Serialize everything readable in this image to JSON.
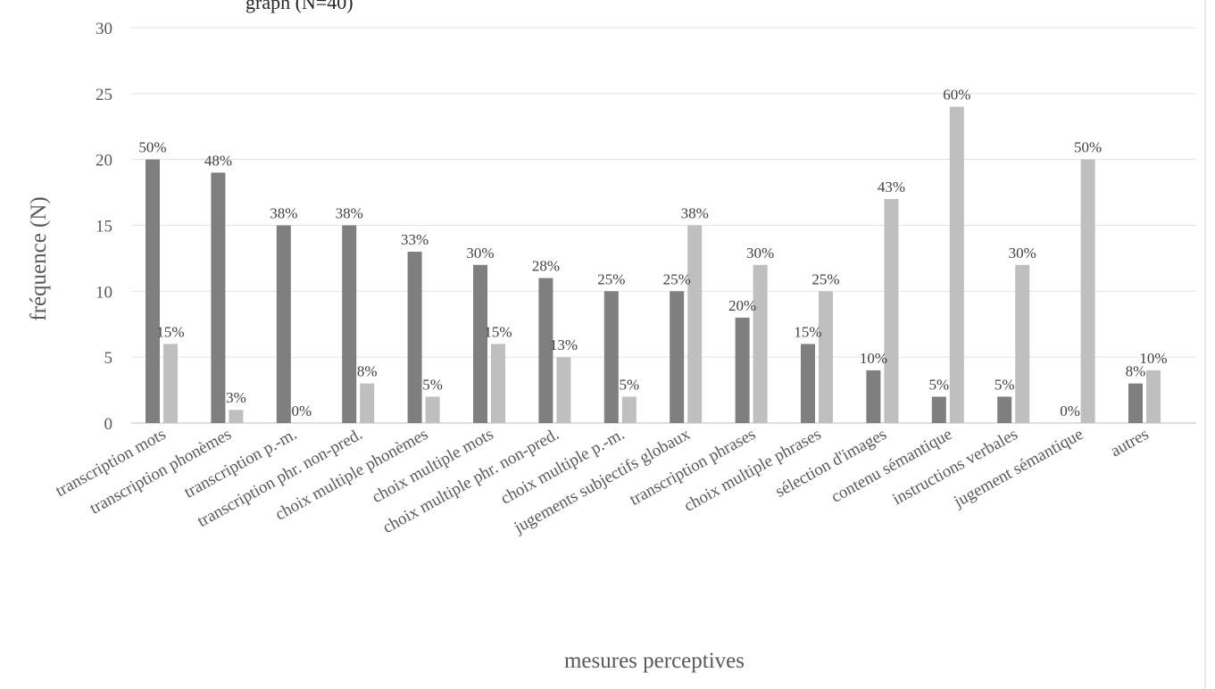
{
  "header_fragment": "graph (N=40)",
  "chart_data": {
    "type": "bar",
    "xlabel": "mesures perceptives",
    "ylabel": "fréquence (N)",
    "ylim": [
      0,
      30
    ],
    "yticks": [
      0,
      5,
      10,
      15,
      20,
      25,
      30
    ],
    "grid": true,
    "colors": [
      "#7f7f7f",
      "#bfbfbf"
    ],
    "categories": [
      "transcription mots",
      "transcription phonèmes",
      "transcription p.-m.",
      "transcription phr. non-pred.",
      "choix multiple phonèmes",
      "choix multiple mots",
      "choix multiple phr. non-pred.",
      "choix multiple p.-m.",
      "jugements subjectifs globaux",
      "transcription phrases",
      "choix multiple phrases",
      "sélection d'images",
      "contenu sémantique",
      "instructions verbales",
      "jugement sémantique",
      "autres"
    ],
    "series": [
      {
        "values": [
          20,
          19,
          15,
          15,
          13,
          12,
          11,
          10,
          10,
          8,
          6,
          4,
          2,
          2,
          0,
          3
        ],
        "labels": [
          "50%",
          "48%",
          "38%",
          "38%",
          "33%",
          "30%",
          "28%",
          "25%",
          "25%",
          "20%",
          "15%",
          "10%",
          "5%",
          "5%",
          "0%",
          "8%"
        ]
      },
      {
        "values": [
          6,
          1,
          0,
          3,
          2,
          6,
          5,
          2,
          15,
          12,
          10,
          17,
          24,
          12,
          20,
          4
        ],
        "labels": [
          "15%",
          "3%",
          "0%",
          "8%",
          "5%",
          "15%",
          "13%",
          "5%",
          "38%",
          "30%",
          "25%",
          "43%",
          "60%",
          "30%",
          "50%",
          "10%"
        ]
      }
    ]
  }
}
